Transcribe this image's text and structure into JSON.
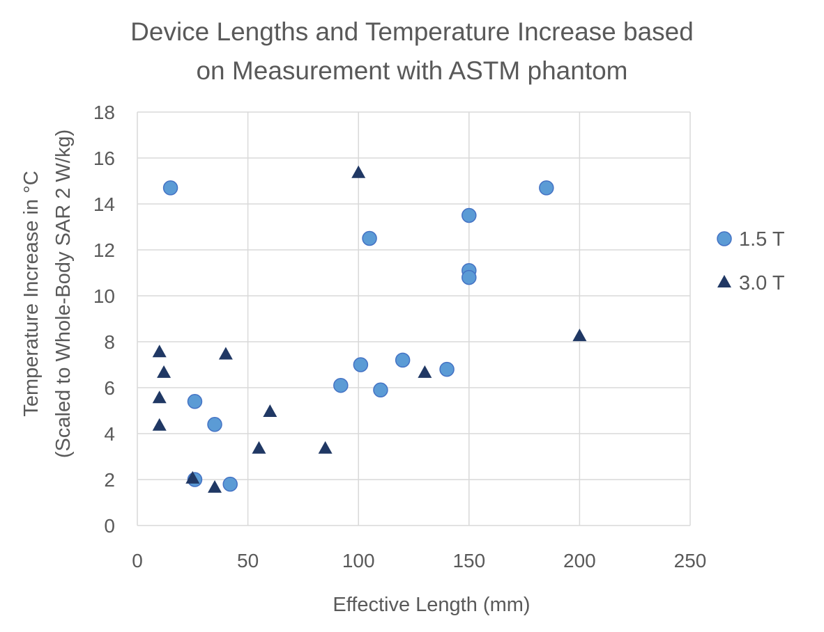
{
  "chart_data": {
    "type": "scatter",
    "title": [
      "Device Lengths and Temperature Increase based",
      "on Measurement with ASTM phantom"
    ],
    "xlabel": "Effective Length (mm)",
    "ylabel": [
      "Temperature Increase in °C",
      "(Scaled to Whole-Body SAR 2 W/kg)"
    ],
    "xlim": [
      0,
      250
    ],
    "ylim": [
      0,
      18
    ],
    "x_ticks": [
      0,
      50,
      100,
      150,
      200,
      250
    ],
    "y_ticks": [
      0,
      2,
      4,
      6,
      8,
      10,
      12,
      14,
      16,
      18
    ],
    "grid": true,
    "legend_position": "right",
    "series": [
      {
        "name": "1.5 T",
        "marker": "circle",
        "color": "#5b9bd5",
        "edge_color": "#4472c4",
        "points": [
          {
            "x": 15,
            "y": 14.7
          },
          {
            "x": 26,
            "y": 5.4
          },
          {
            "x": 26,
            "y": 2.0
          },
          {
            "x": 35,
            "y": 4.4
          },
          {
            "x": 42,
            "y": 1.8
          },
          {
            "x": 92,
            "y": 6.1
          },
          {
            "x": 101,
            "y": 7.0
          },
          {
            "x": 105,
            "y": 12.5
          },
          {
            "x": 110,
            "y": 5.9
          },
          {
            "x": 120,
            "y": 7.2
          },
          {
            "x": 140,
            "y": 6.8
          },
          {
            "x": 150,
            "y": 13.5
          },
          {
            "x": 150,
            "y": 11.1
          },
          {
            "x": 150,
            "y": 10.8
          },
          {
            "x": 185,
            "y": 14.7
          }
        ]
      },
      {
        "name": "3.0 T",
        "marker": "triangle",
        "color": "#203864",
        "points": [
          {
            "x": 10,
            "y": 7.6
          },
          {
            "x": 12,
            "y": 6.7
          },
          {
            "x": 10,
            "y": 5.6
          },
          {
            "x": 10,
            "y": 4.4
          },
          {
            "x": 25,
            "y": 2.1
          },
          {
            "x": 35,
            "y": 1.7
          },
          {
            "x": 40,
            "y": 7.5
          },
          {
            "x": 55,
            "y": 3.4
          },
          {
            "x": 60,
            "y": 5.0
          },
          {
            "x": 85,
            "y": 3.4
          },
          {
            "x": 100,
            "y": 15.4
          },
          {
            "x": 130,
            "y": 6.7
          },
          {
            "x": 200,
            "y": 8.3
          }
        ]
      }
    ]
  }
}
